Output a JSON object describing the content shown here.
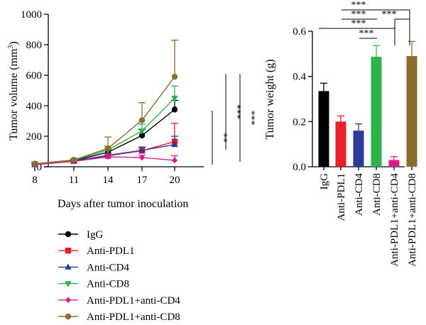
{
  "chart_data": [
    {
      "type": "line",
      "xlabel": "Days after tumor inoculation",
      "ylabel": "Tumor volume (mm",
      "ylabel_sup": "3",
      "ylabel_close": ")",
      "x": [
        8,
        11,
        14,
        17,
        20
      ],
      "xlim": [
        8,
        20
      ],
      "ylim": [
        0,
        1000
      ],
      "yticks": [
        0,
        200,
        400,
        600,
        800,
        1000
      ],
      "series": [
        {
          "name": "IgG",
          "color": "#000000",
          "marker": "circle",
          "values": [
            18,
            40,
            95,
            205,
            375
          ],
          "errors": [
            4,
            6,
            20,
            40,
            60
          ]
        },
        {
          "name": "Anti-PDL1",
          "color": "#e8202a",
          "marker": "square",
          "values": [
            16,
            38,
            72,
            105,
            165
          ],
          "errors": [
            4,
            6,
            15,
            25,
            120
          ]
        },
        {
          "name": "Anti-CD4",
          "color": "#2b3a9a",
          "marker": "triangle-up",
          "values": [
            15,
            38,
            75,
            108,
            145
          ],
          "errors": [
            4,
            6,
            15,
            20,
            55
          ]
        },
        {
          "name": "Anti-CD8",
          "color": "#2db34a",
          "marker": "triangle-down",
          "values": [
            17,
            42,
            110,
            235,
            450
          ],
          "errors": [
            4,
            6,
            25,
            45,
            80
          ]
        },
        {
          "name": "Anti-PDL1+anti-CD4",
          "color": "#d81b8c",
          "marker": "diamond",
          "values": [
            14,
            35,
            65,
            60,
            42
          ],
          "errors": [
            4,
            6,
            12,
            15,
            30
          ]
        },
        {
          "name": "Anti-PDL1+anti-CD8",
          "color": "#8b6d2e",
          "marker": "circle",
          "values": [
            20,
            45,
            120,
            305,
            590
          ],
          "errors": [
            4,
            8,
            75,
            115,
            240
          ]
        }
      ],
      "significance": [
        "**",
        "***",
        "***"
      ]
    },
    {
      "type": "bar",
      "ylabel": "Tumor weight (g)",
      "ylim": [
        0,
        0.6
      ],
      "yticks": [
        "0.0",
        "0.2",
        "0.4",
        "0.6"
      ],
      "categories": [
        "IgG",
        "Anti-PDL1",
        "Anti-CD4",
        "Anti-CD8",
        "Anti-PDL1+anti-CD4",
        "Anti-PDL1+anti-CD8"
      ],
      "values": [
        0.335,
        0.2,
        0.16,
        0.487,
        0.03,
        0.49
      ],
      "errors": [
        0.035,
        0.025,
        0.03,
        0.05,
        0.015,
        0.065
      ],
      "colors": [
        "#000000",
        "#e8202a",
        "#2b3a9a",
        "#2db34a",
        "#d81b8c",
        "#8b6d2e"
      ],
      "significance": [
        "***",
        "***",
        "***",
        "***",
        "***",
        "***"
      ]
    }
  ]
}
